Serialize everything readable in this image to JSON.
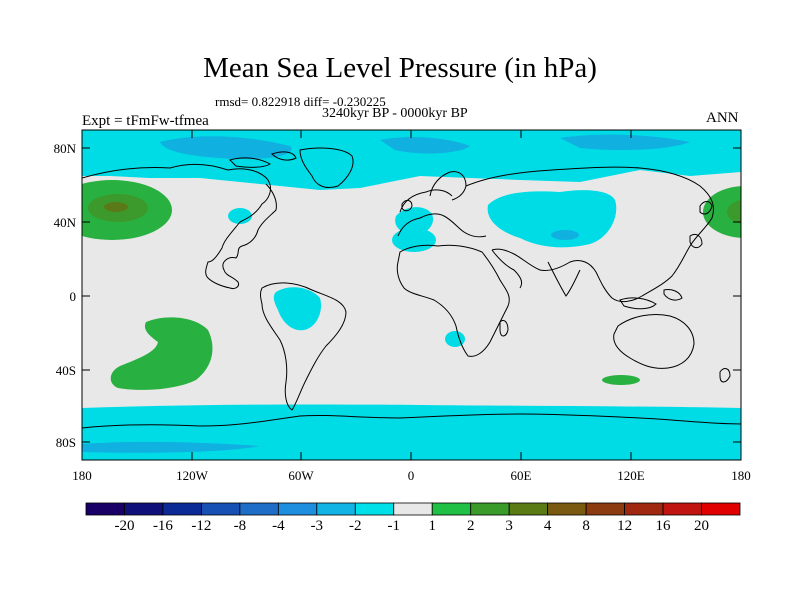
{
  "title": "Mean Sea Level Pressure (in hPa)",
  "stats": "rmsd= 0.822918 diff= -0.230225",
  "period": "3240kyr BP - 0000kyr BP",
  "experiment": "Expt = tFmFw-tfmea",
  "season": "ANN",
  "lat_labels": [
    "80N",
    "40N",
    "0",
    "40S",
    "80S"
  ],
  "lon_labels": [
    "180",
    "120W",
    "60W",
    "0",
    "60E",
    "120E",
    "180"
  ],
  "colorbar": {
    "colors": [
      "#1a0066",
      "#10107a",
      "#0c2a96",
      "#1650b4",
      "#1e6ec8",
      "#1e8ede",
      "#12b4e6",
      "#00e0e8",
      "#e8e8e8",
      "#20c044",
      "#3a9a2a",
      "#5a7a14",
      "#7a5a10",
      "#8c3a10",
      "#a02810",
      "#c01410",
      "#e00000"
    ],
    "labels": [
      "-20",
      "-16",
      "-12",
      "-8",
      "-4",
      "-3",
      "-2",
      "-1",
      "1",
      "2",
      "3",
      "4",
      "8",
      "12",
      "16",
      "20"
    ]
  },
  "map_colors": {
    "background": "#e8e8e8",
    "cyan": "#00dce6",
    "light_blue": "#10b0e0",
    "mid_blue": "#1a8ed8",
    "green": "#28b040",
    "dark_green": "#3c9a2c",
    "olive": "#5a7a1a",
    "coast": "#000000"
  }
}
